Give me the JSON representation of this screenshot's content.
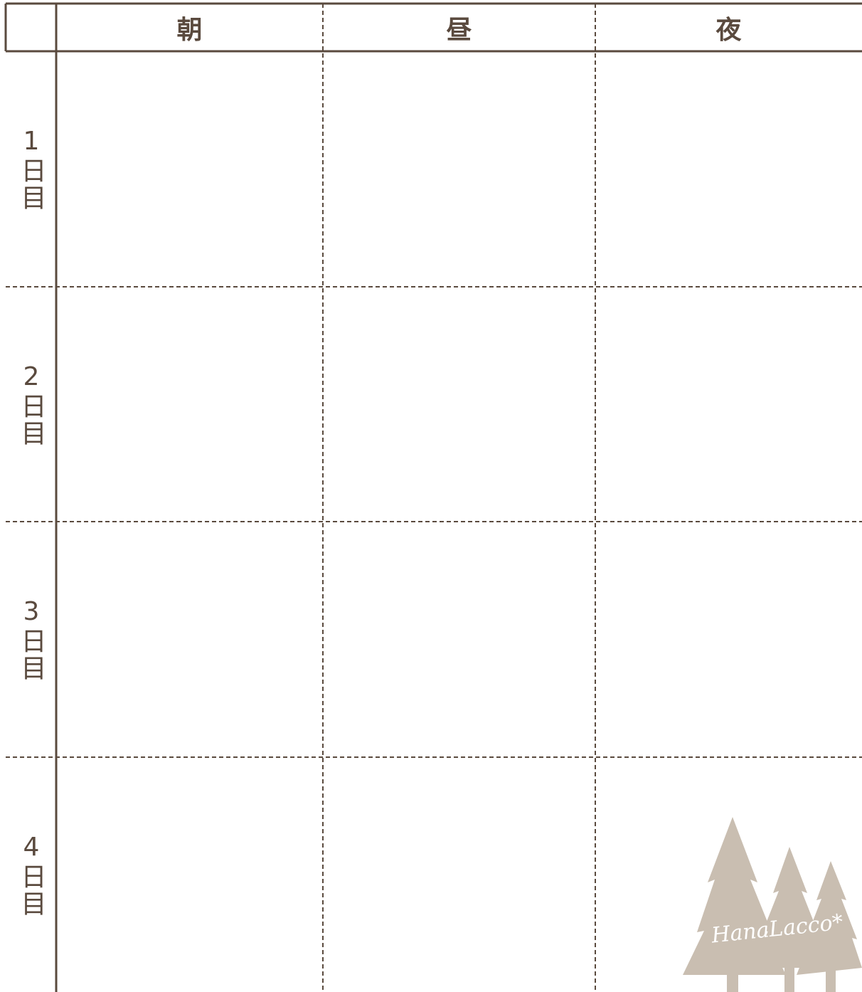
{
  "table": {
    "columns": [
      "朝",
      "昼",
      "夜"
    ],
    "rows": [
      "1日目",
      "2日目",
      "3日目",
      "4日目"
    ]
  },
  "watermark": "HanaLacco*"
}
